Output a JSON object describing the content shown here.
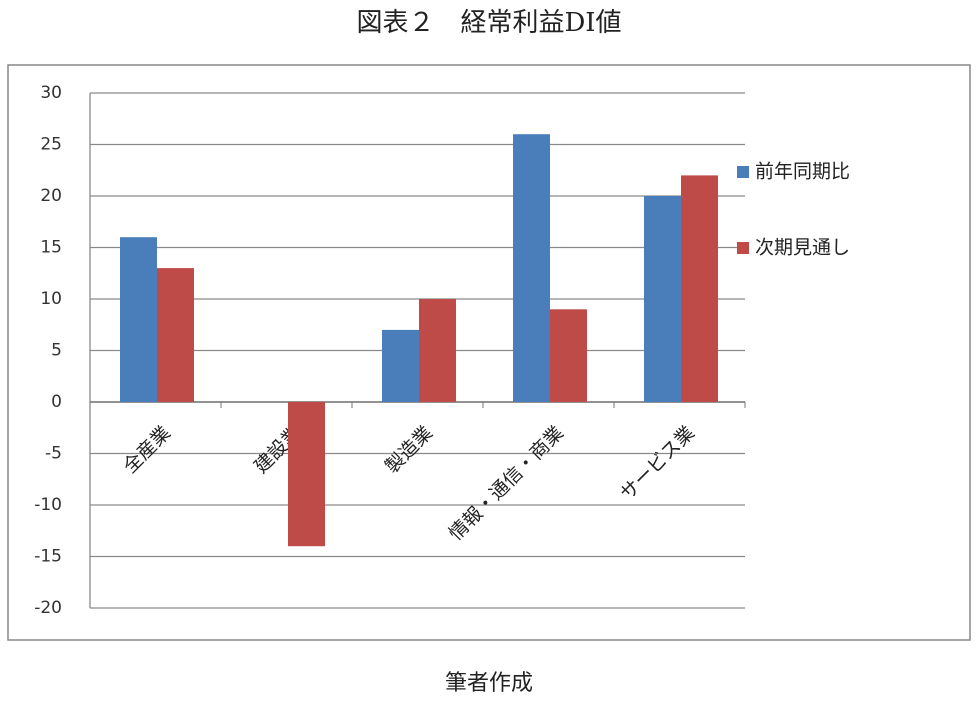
{
  "chart_data": {
    "type": "bar",
    "title": "図表２　経常利益DI値",
    "source": "筆者作成",
    "categories": [
      "全産業",
      "建設業",
      "製造業",
      "情報・通信・商業",
      "サービス業"
    ],
    "series": [
      {
        "name": "前年同期比",
        "color": "#4a7ebb",
        "values": [
          16,
          0,
          7,
          26,
          20
        ]
      },
      {
        "name": "次期見通し",
        "color": "#be4b48",
        "values": [
          13,
          -14,
          10,
          9,
          22
        ]
      }
    ],
    "ylim": [
      -20,
      30
    ],
    "yticks": [
      -20,
      -15,
      -10,
      -5,
      0,
      5,
      10,
      15,
      20,
      25,
      30
    ],
    "grid": true,
    "legend": "right"
  }
}
